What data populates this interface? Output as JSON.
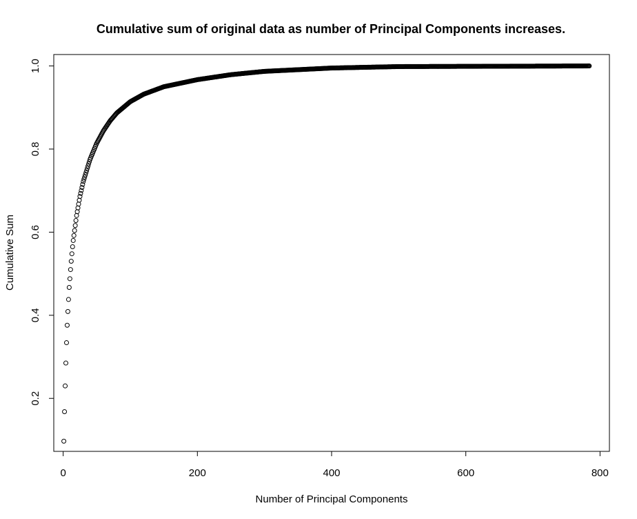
{
  "chart_data": {
    "type": "scatter",
    "title": "Cumulative sum of original data as number of Principal Components increases.",
    "xlabel": "Number of Principal Components",
    "ylabel": "Cumulative Sum",
    "xlim": [
      -14,
      814
    ],
    "ylim": [
      0.0725,
      1.0275
    ],
    "x_ticks": [
      0,
      200,
      400,
      600,
      800
    ],
    "y_ticks": [
      0.2,
      0.4,
      0.6,
      0.8,
      1.0
    ],
    "x_tick_labels": [
      "0",
      "200",
      "400",
      "600",
      "800"
    ],
    "y_tick_labels": [
      "0.2",
      "0.4",
      "0.6",
      "0.8",
      "1.0"
    ],
    "n_components": 784,
    "anchors": {
      "x": [
        1,
        2,
        3,
        4,
        5,
        6,
        7,
        8,
        9,
        10,
        11,
        12,
        13,
        14,
        15,
        20,
        25,
        30,
        40,
        50,
        60,
        70,
        80,
        100,
        120,
        150,
        200,
        250,
        300,
        400,
        500,
        784
      ],
      "y": [
        0.097,
        0.168,
        0.23,
        0.285,
        0.334,
        0.376,
        0.409,
        0.438,
        0.467,
        0.488,
        0.51,
        0.53,
        0.548,
        0.565,
        0.58,
        0.64,
        0.686,
        0.722,
        0.775,
        0.814,
        0.844,
        0.868,
        0.887,
        0.914,
        0.932,
        0.95,
        0.967,
        0.979,
        0.987,
        0.995,
        0.9985,
        1.0
      ]
    },
    "grid": false,
    "marker": "open-circle",
    "color": "#000000"
  }
}
